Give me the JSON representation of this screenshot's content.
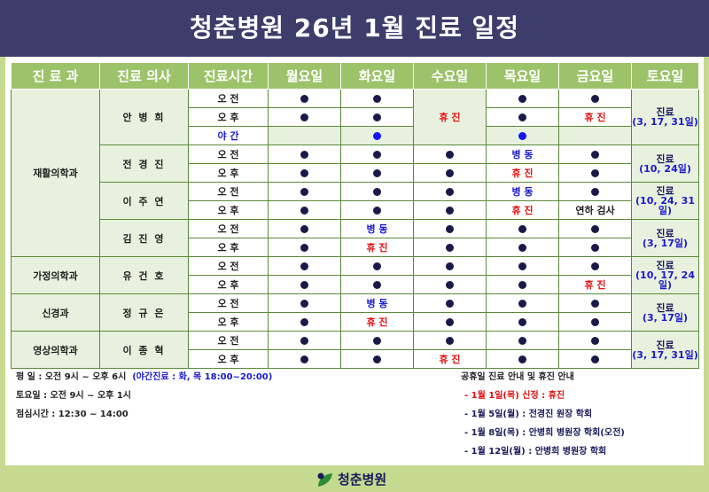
{
  "title": "청춘병원 26년 1월 진료 일정",
  "headers": [
    "진 료 과",
    "진료 의사",
    "진료시간",
    "월요일",
    "화요일",
    "수요일",
    "목요일",
    "금요일",
    "토요일"
  ],
  "slots": {
    "am": "오 전",
    "pm": "오 후",
    "night": "야 간"
  },
  "status": {
    "closed": "휴 진",
    "ward": "병 동",
    "annual": "연하 검사"
  },
  "saturday_label": "진료",
  "departments": {
    "rehab": "재활의학과",
    "family": "가정의학과",
    "neuro": "신경과",
    "radio": "영상의학과"
  },
  "doctors": {
    "d1": "안 병 희",
    "d2": "전 경 진",
    "d3": "이 주 연",
    "d4": "김 진 영",
    "d5": "유 건 호",
    "d6": "정 규 은",
    "d7": "이 종 혁"
  },
  "saturday": {
    "d1": "(3, 17, 31일)",
    "d2": "(10, 24일)",
    "d3": "(10, 24, 31일)",
    "d4": "(3, 17일)",
    "d5": "(10, 17, 24일)",
    "d6": "(3, 17일)",
    "d7": "(3, 17, 31일)"
  },
  "notes_left": {
    "weekday": "평    일 : 오전 9시 ~ 오후 6시",
    "night": "(야간진료 : 화, 목 18:00~20:00)",
    "saturday": "토요일 : 오전 9시 ~ 오후 1시",
    "lunch": "점심시간 : 12:30 ~ 14:00"
  },
  "notes_right": {
    "title": "공휴일 진료 안내 및 휴진 안내",
    "items": [
      "- 1월 1일(목) 신정 : 휴진",
      "- 1월 5일(월) : 전경진 원장 학회",
      "- 1월 8일(목) : 안병희 병원장 학회(오전)",
      "- 1월 12일(월) : 안병희 병원장 학회"
    ]
  },
  "footer_logo": "청춘병원",
  "colors": {
    "header_bg": "#3d3d6b",
    "green": "#9dc36a",
    "red": "#e01010",
    "blue": "#1a1acc"
  }
}
